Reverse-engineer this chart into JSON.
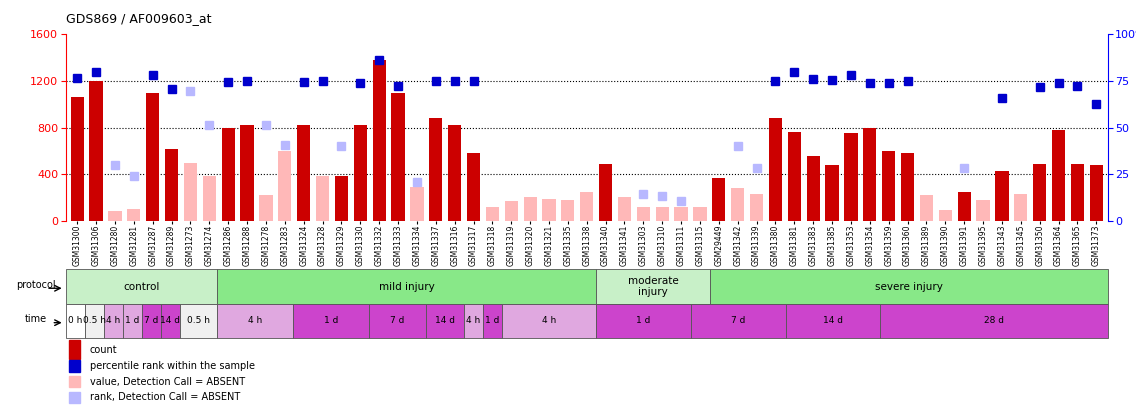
{
  "title": "GDS869 / AF009603_at",
  "samples": [
    "GSM31300",
    "GSM31306",
    "GSM31280",
    "GSM31281",
    "GSM31287",
    "GSM31289",
    "GSM31273",
    "GSM31274",
    "GSM31286",
    "GSM31288",
    "GSM31278",
    "GSM31283",
    "GSM31324",
    "GSM31328",
    "GSM31329",
    "GSM31330",
    "GSM31332",
    "GSM31333",
    "GSM31334",
    "GSM31337",
    "GSM31316",
    "GSM31317",
    "GSM31318",
    "GSM31319",
    "GSM31320",
    "GSM31321",
    "GSM31335",
    "GSM31338",
    "GSM31340",
    "GSM31341",
    "GSM31303",
    "GSM31310",
    "GSM31311",
    "GSM31315",
    "GSM29449",
    "GSM31342",
    "GSM31339",
    "GSM31380",
    "GSM31381",
    "GSM31383",
    "GSM31385",
    "GSM31353",
    "GSM31354",
    "GSM31359",
    "GSM31360",
    "GSM31389",
    "GSM31390",
    "GSM31391",
    "GSM31395",
    "GSM31343",
    "GSM31345",
    "GSM31350",
    "GSM31364",
    "GSM31365",
    "GSM31373"
  ],
  "count_present": [
    1060,
    1200,
    null,
    null,
    1100,
    620,
    null,
    null,
    800,
    820,
    null,
    null,
    820,
    null,
    380,
    820,
    1380,
    1100,
    null,
    880,
    820,
    580,
    null,
    null,
    null,
    null,
    null,
    null,
    490,
    null,
    null,
    null,
    null,
    null,
    370,
    null,
    null,
    880,
    760,
    560,
    480,
    750,
    800,
    600,
    580,
    null,
    null,
    250,
    null,
    430,
    null,
    490,
    780,
    490,
    480
  ],
  "rank_present": [
    1230,
    1280,
    null,
    null,
    1250,
    1130,
    null,
    null,
    1190,
    1200,
    null,
    null,
    1190,
    1200,
    null,
    1180,
    1380,
    1160,
    null,
    1200,
    1200,
    1200,
    null,
    null,
    null,
    null,
    null,
    null,
    null,
    null,
    null,
    null,
    null,
    null,
    null,
    null,
    null,
    1200,
    1280,
    1220,
    1210,
    1250,
    1180,
    1180,
    1200,
    null,
    null,
    null,
    null,
    1050,
    null,
    1150,
    1180,
    1160,
    1000
  ],
  "count_absent": [
    null,
    null,
    80,
    100,
    null,
    null,
    500,
    380,
    null,
    null,
    220,
    600,
    null,
    380,
    null,
    null,
    null,
    null,
    290,
    null,
    null,
    null,
    120,
    170,
    200,
    190,
    180,
    250,
    null,
    200,
    120,
    120,
    120,
    120,
    null,
    280,
    230,
    null,
    null,
    null,
    null,
    null,
    null,
    null,
    null,
    220,
    90,
    null,
    180,
    null,
    230,
    null,
    null,
    null,
    130
  ],
  "rank_absent": [
    null,
    null,
    480,
    380,
    null,
    null,
    1110,
    820,
    null,
    null,
    820,
    650,
    null,
    null,
    640,
    null,
    null,
    null,
    330,
    null,
    null,
    null,
    null,
    null,
    null,
    null,
    null,
    null,
    null,
    null,
    230,
    210,
    170,
    null,
    null,
    640,
    450,
    null,
    null,
    null,
    null,
    null,
    null,
    null,
    null,
    null,
    null,
    450,
    null,
    null,
    null,
    null,
    null,
    null,
    null
  ],
  "protocol_groups": [
    {
      "label": "control",
      "start": 0,
      "end": 8,
      "color": "#c8f0c8"
    },
    {
      "label": "mild injury",
      "start": 8,
      "end": 28,
      "color": "#88e888"
    },
    {
      "label": "moderate\ninjury",
      "start": 28,
      "end": 34,
      "color": "#c8f0c8"
    },
    {
      "label": "severe injury",
      "start": 34,
      "end": 55,
      "color": "#88e888"
    }
  ],
  "time_groups": [
    {
      "label": "0 h",
      "start": 0,
      "end": 1,
      "color": "#ffffff"
    },
    {
      "label": "0.5 h",
      "start": 1,
      "end": 2,
      "color": "#f0f0f0"
    },
    {
      "label": "4 h",
      "start": 2,
      "end": 3,
      "color": "#e0a8e0"
    },
    {
      "label": "1 d",
      "start": 3,
      "end": 4,
      "color": "#e0a8e0"
    },
    {
      "label": "7 d",
      "start": 4,
      "end": 5,
      "color": "#cc44cc"
    },
    {
      "label": "14 d",
      "start": 5,
      "end": 6,
      "color": "#cc44cc"
    },
    {
      "label": "0.5 h",
      "start": 6,
      "end": 8,
      "color": "#f0f0f0"
    },
    {
      "label": "4 h",
      "start": 8,
      "end": 12,
      "color": "#e0a8e0"
    },
    {
      "label": "1 d",
      "start": 12,
      "end": 16,
      "color": "#cc44cc"
    },
    {
      "label": "7 d",
      "start": 16,
      "end": 19,
      "color": "#cc44cc"
    },
    {
      "label": "14 d",
      "start": 19,
      "end": 21,
      "color": "#cc44cc"
    },
    {
      "label": "4 h",
      "start": 21,
      "end": 22,
      "color": "#e0a8e0"
    },
    {
      "label": "1 d",
      "start": 22,
      "end": 23,
      "color": "#cc44cc"
    },
    {
      "label": "4 h",
      "start": 23,
      "end": 28,
      "color": "#e0a8e0"
    },
    {
      "label": "1 d",
      "start": 28,
      "end": 33,
      "color": "#cc44cc"
    },
    {
      "label": "7 d",
      "start": 33,
      "end": 38,
      "color": "#cc44cc"
    },
    {
      "label": "14 d",
      "start": 38,
      "end": 43,
      "color": "#cc44cc"
    },
    {
      "label": "28 d",
      "start": 43,
      "end": 55,
      "color": "#cc44cc"
    }
  ],
  "ylim_left": [
    0,
    1600
  ],
  "ylim_right": [
    0,
    100
  ],
  "yticks_left": [
    0,
    400,
    800,
    1200,
    1600
  ],
  "yticks_right": [
    0,
    25,
    50,
    75,
    100
  ],
  "bar_color_present": "#cc0000",
  "bar_color_absent": "#ffb8b8",
  "dot_color_present": "#0000cc",
  "dot_color_absent": "#b8b8ff"
}
